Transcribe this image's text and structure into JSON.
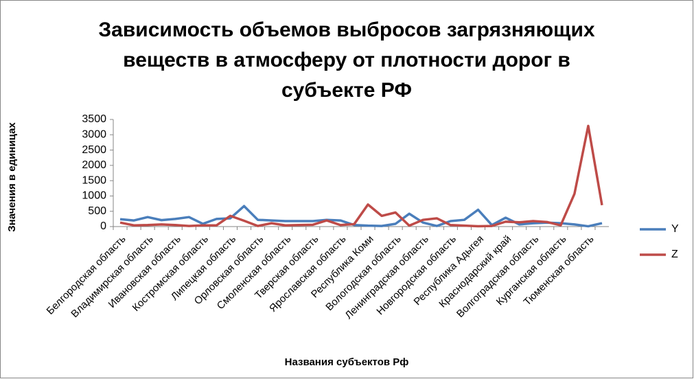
{
  "chart_data": {
    "type": "line",
    "title": [
      "Зависимость объемов выбросов загрязняющих",
      "веществ в атмосферу от плотности дорог в",
      "субъекте РФ"
    ],
    "x_label": "Названия субъектов Рф",
    "y_label": "Значения в единицах",
    "categories": [
      "Белгородская область",
      null,
      "Владимирская область",
      null,
      "Ивановская область",
      null,
      "Костромская область",
      null,
      "Липецкая область",
      null,
      "Орловская область",
      null,
      "Смоленская область",
      null,
      "Тверская область",
      null,
      "Ярославская область",
      null,
      "Республика Коми",
      null,
      "Вологодская область",
      null,
      "Ленинградская область",
      null,
      "Новгородская область",
      null,
      "Республика Адыгея",
      null,
      "Краснодарский край",
      null,
      "Волгоградская область",
      null,
      "Курганская область",
      null,
      "Тюменская область",
      null
    ],
    "series": [
      {
        "name": "Y",
        "color": "#4a7ebb",
        "values": [
          240,
          200,
          310,
          210,
          250,
          310,
          90,
          250,
          270,
          670,
          220,
          200,
          180,
          180,
          180,
          220,
          200,
          50,
          30,
          20,
          90,
          420,
          130,
          20,
          180,
          220,
          550,
          50,
          290,
          70,
          110,
          130,
          110,
          70,
          10,
          110
        ]
      },
      {
        "name": "Z",
        "color": "#be4b48",
        "values": [
          130,
          40,
          50,
          70,
          50,
          20,
          40,
          40,
          350,
          190,
          20,
          110,
          40,
          50,
          60,
          200,
          50,
          80,
          720,
          350,
          460,
          30,
          220,
          270,
          50,
          30,
          10,
          20,
          160,
          140,
          180,
          150,
          40,
          1070,
          3290,
          700
        ]
      }
    ],
    "ylim": [
      0,
      3500
    ],
    "yticks": [
      0,
      500,
      1000,
      1500,
      2000,
      2500,
      3000,
      3500
    ],
    "grid": false,
    "legend": "right"
  }
}
